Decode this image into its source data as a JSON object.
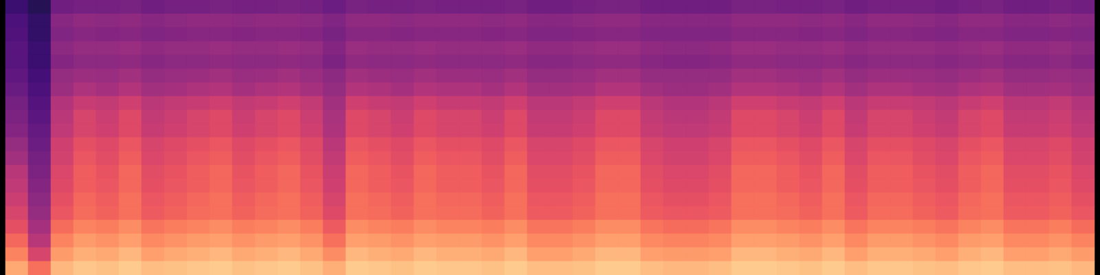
{
  "chart_data": {
    "type": "heatmap",
    "color": "magma",
    "zlim": [
      0,
      1
    ],
    "tick_labels": false,
    "values": [
      [
        0.2,
        0.15,
        0.33,
        0.34,
        0.34,
        0.35,
        0.33,
        0.34,
        0.34,
        0.35,
        0.34,
        0.34,
        0.35,
        0.34,
        0.32,
        0.35,
        0.34,
        0.34,
        0.35,
        0.34,
        0.34,
        0.34,
        0.35,
        0.33,
        0.33,
        0.34,
        0.35,
        0.35,
        0.33,
        0.33,
        0.33,
        0.33,
        0.35,
        0.35,
        0.34,
        0.34,
        0.35,
        0.33,
        0.34,
        0.34,
        0.34,
        0.33,
        0.34,
        0.35,
        0.33,
        0.33,
        0.34,
        0.33
      ],
      [
        0.24,
        0.18,
        0.39,
        0.41,
        0.4,
        0.41,
        0.39,
        0.4,
        0.41,
        0.41,
        0.4,
        0.41,
        0.41,
        0.4,
        0.37,
        0.41,
        0.41,
        0.4,
        0.41,
        0.41,
        0.41,
        0.4,
        0.41,
        0.39,
        0.39,
        0.4,
        0.41,
        0.41,
        0.39,
        0.39,
        0.39,
        0.39,
        0.41,
        0.41,
        0.41,
        0.4,
        0.41,
        0.39,
        0.41,
        0.41,
        0.4,
        0.39,
        0.41,
        0.41,
        0.39,
        0.39,
        0.4,
        0.39
      ],
      [
        0.25,
        0.18,
        0.37,
        0.39,
        0.38,
        0.39,
        0.37,
        0.38,
        0.39,
        0.39,
        0.38,
        0.39,
        0.39,
        0.38,
        0.35,
        0.39,
        0.39,
        0.38,
        0.39,
        0.39,
        0.39,
        0.38,
        0.39,
        0.37,
        0.37,
        0.38,
        0.39,
        0.39,
        0.37,
        0.37,
        0.37,
        0.37,
        0.39,
        0.39,
        0.39,
        0.38,
        0.39,
        0.37,
        0.39,
        0.39,
        0.38,
        0.37,
        0.39,
        0.39,
        0.37,
        0.37,
        0.38,
        0.37
      ],
      [
        0.27,
        0.2,
        0.4,
        0.42,
        0.42,
        0.43,
        0.41,
        0.42,
        0.42,
        0.43,
        0.42,
        0.42,
        0.43,
        0.42,
        0.38,
        0.43,
        0.42,
        0.42,
        0.43,
        0.42,
        0.42,
        0.42,
        0.43,
        0.41,
        0.41,
        0.42,
        0.43,
        0.43,
        0.41,
        0.4,
        0.4,
        0.41,
        0.43,
        0.43,
        0.42,
        0.42,
        0.43,
        0.41,
        0.42,
        0.42,
        0.42,
        0.41,
        0.42,
        0.43,
        0.41,
        0.41,
        0.42,
        0.4
      ],
      [
        0.27,
        0.2,
        0.38,
        0.4,
        0.4,
        0.41,
        0.39,
        0.4,
        0.4,
        0.41,
        0.4,
        0.4,
        0.41,
        0.4,
        0.36,
        0.41,
        0.4,
        0.4,
        0.41,
        0.4,
        0.4,
        0.4,
        0.41,
        0.39,
        0.39,
        0.4,
        0.41,
        0.41,
        0.39,
        0.38,
        0.38,
        0.39,
        0.41,
        0.41,
        0.4,
        0.4,
        0.41,
        0.39,
        0.4,
        0.4,
        0.4,
        0.39,
        0.4,
        0.41,
        0.39,
        0.39,
        0.4,
        0.38
      ],
      [
        0.29,
        0.22,
        0.42,
        0.44,
        0.43,
        0.45,
        0.42,
        0.43,
        0.44,
        0.45,
        0.43,
        0.44,
        0.45,
        0.43,
        0.4,
        0.45,
        0.44,
        0.43,
        0.45,
        0.44,
        0.44,
        0.43,
        0.45,
        0.42,
        0.42,
        0.43,
        0.45,
        0.45,
        0.42,
        0.42,
        0.42,
        0.42,
        0.45,
        0.45,
        0.44,
        0.43,
        0.45,
        0.42,
        0.44,
        0.44,
        0.43,
        0.42,
        0.44,
        0.45,
        0.42,
        0.42,
        0.43,
        0.42
      ],
      [
        0.31,
        0.24,
        0.44,
        0.48,
        0.46,
        0.49,
        0.45,
        0.46,
        0.48,
        0.49,
        0.46,
        0.48,
        0.49,
        0.46,
        0.42,
        0.49,
        0.48,
        0.46,
        0.49,
        0.48,
        0.48,
        0.46,
        0.49,
        0.45,
        0.45,
        0.46,
        0.49,
        0.49,
        0.45,
        0.44,
        0.44,
        0.45,
        0.49,
        0.49,
        0.48,
        0.46,
        0.49,
        0.45,
        0.48,
        0.48,
        0.46,
        0.45,
        0.48,
        0.49,
        0.45,
        0.45,
        0.46,
        0.44
      ],
      [
        0.34,
        0.26,
        0.49,
        0.54,
        0.53,
        0.56,
        0.51,
        0.53,
        0.54,
        0.56,
        0.53,
        0.54,
        0.56,
        0.53,
        0.45,
        0.56,
        0.54,
        0.53,
        0.56,
        0.54,
        0.54,
        0.53,
        0.56,
        0.51,
        0.51,
        0.53,
        0.56,
        0.56,
        0.51,
        0.49,
        0.49,
        0.51,
        0.56,
        0.56,
        0.54,
        0.53,
        0.56,
        0.51,
        0.54,
        0.54,
        0.53,
        0.51,
        0.54,
        0.56,
        0.51,
        0.51,
        0.53,
        0.49
      ],
      [
        0.36,
        0.28,
        0.51,
        0.58,
        0.55,
        0.6,
        0.53,
        0.55,
        0.58,
        0.6,
        0.55,
        0.58,
        0.6,
        0.55,
        0.47,
        0.6,
        0.58,
        0.55,
        0.6,
        0.58,
        0.58,
        0.55,
        0.6,
        0.53,
        0.53,
        0.55,
        0.6,
        0.6,
        0.53,
        0.51,
        0.51,
        0.53,
        0.6,
        0.6,
        0.58,
        0.55,
        0.6,
        0.53,
        0.58,
        0.58,
        0.55,
        0.53,
        0.58,
        0.6,
        0.53,
        0.53,
        0.55,
        0.51
      ],
      [
        0.38,
        0.3,
        0.52,
        0.58,
        0.56,
        0.6,
        0.54,
        0.56,
        0.58,
        0.6,
        0.56,
        0.58,
        0.6,
        0.56,
        0.48,
        0.6,
        0.58,
        0.56,
        0.6,
        0.58,
        0.58,
        0.56,
        0.6,
        0.54,
        0.54,
        0.56,
        0.6,
        0.6,
        0.54,
        0.52,
        0.52,
        0.54,
        0.6,
        0.6,
        0.58,
        0.56,
        0.6,
        0.54,
        0.58,
        0.58,
        0.56,
        0.54,
        0.58,
        0.6,
        0.54,
        0.54,
        0.56,
        0.52
      ],
      [
        0.42,
        0.32,
        0.56,
        0.62,
        0.6,
        0.64,
        0.58,
        0.6,
        0.62,
        0.64,
        0.6,
        0.62,
        0.64,
        0.6,
        0.51,
        0.64,
        0.62,
        0.6,
        0.64,
        0.62,
        0.62,
        0.6,
        0.64,
        0.58,
        0.58,
        0.6,
        0.64,
        0.64,
        0.58,
        0.56,
        0.56,
        0.58,
        0.64,
        0.64,
        0.62,
        0.6,
        0.64,
        0.58,
        0.62,
        0.62,
        0.6,
        0.58,
        0.62,
        0.64,
        0.58,
        0.58,
        0.6,
        0.56
      ],
      [
        0.45,
        0.34,
        0.57,
        0.64,
        0.61,
        0.66,
        0.59,
        0.61,
        0.64,
        0.66,
        0.61,
        0.64,
        0.66,
        0.61,
        0.53,
        0.66,
        0.64,
        0.61,
        0.66,
        0.64,
        0.64,
        0.61,
        0.66,
        0.59,
        0.59,
        0.61,
        0.66,
        0.66,
        0.59,
        0.57,
        0.57,
        0.59,
        0.66,
        0.66,
        0.64,
        0.61,
        0.66,
        0.59,
        0.64,
        0.64,
        0.61,
        0.59,
        0.64,
        0.66,
        0.59,
        0.59,
        0.61,
        0.57
      ],
      [
        0.5,
        0.36,
        0.59,
        0.66,
        0.63,
        0.68,
        0.61,
        0.63,
        0.66,
        0.68,
        0.63,
        0.66,
        0.68,
        0.63,
        0.55,
        0.68,
        0.66,
        0.63,
        0.68,
        0.66,
        0.66,
        0.63,
        0.68,
        0.61,
        0.61,
        0.63,
        0.68,
        0.68,
        0.61,
        0.59,
        0.59,
        0.61,
        0.68,
        0.68,
        0.66,
        0.63,
        0.68,
        0.61,
        0.66,
        0.66,
        0.63,
        0.61,
        0.66,
        0.68,
        0.61,
        0.61,
        0.63,
        0.59
      ],
      [
        0.52,
        0.38,
        0.6,
        0.66,
        0.64,
        0.68,
        0.62,
        0.64,
        0.66,
        0.68,
        0.64,
        0.66,
        0.68,
        0.64,
        0.56,
        0.68,
        0.66,
        0.64,
        0.68,
        0.66,
        0.66,
        0.64,
        0.68,
        0.62,
        0.62,
        0.64,
        0.68,
        0.68,
        0.62,
        0.6,
        0.6,
        0.62,
        0.68,
        0.68,
        0.66,
        0.64,
        0.68,
        0.62,
        0.66,
        0.66,
        0.64,
        0.62,
        0.66,
        0.68,
        0.62,
        0.62,
        0.64,
        0.6
      ],
      [
        0.55,
        0.4,
        0.62,
        0.68,
        0.66,
        0.7,
        0.64,
        0.66,
        0.68,
        0.7,
        0.66,
        0.68,
        0.7,
        0.66,
        0.58,
        0.7,
        0.68,
        0.66,
        0.7,
        0.68,
        0.68,
        0.66,
        0.7,
        0.64,
        0.64,
        0.66,
        0.7,
        0.7,
        0.64,
        0.62,
        0.62,
        0.64,
        0.7,
        0.7,
        0.68,
        0.66,
        0.7,
        0.64,
        0.68,
        0.68,
        0.66,
        0.64,
        0.68,
        0.7,
        0.64,
        0.64,
        0.66,
        0.62
      ],
      [
        0.58,
        0.42,
        0.64,
        0.69,
        0.67,
        0.7,
        0.65,
        0.67,
        0.69,
        0.7,
        0.67,
        0.69,
        0.7,
        0.67,
        0.6,
        0.7,
        0.69,
        0.67,
        0.7,
        0.69,
        0.69,
        0.67,
        0.7,
        0.65,
        0.65,
        0.67,
        0.7,
        0.7,
        0.65,
        0.64,
        0.64,
        0.65,
        0.7,
        0.7,
        0.69,
        0.67,
        0.7,
        0.65,
        0.69,
        0.69,
        0.67,
        0.65,
        0.69,
        0.7,
        0.65,
        0.65,
        0.67,
        0.64
      ],
      [
        0.62,
        0.46,
        0.69,
        0.74,
        0.73,
        0.76,
        0.71,
        0.73,
        0.74,
        0.76,
        0.73,
        0.74,
        0.76,
        0.73,
        0.65,
        0.76,
        0.74,
        0.73,
        0.76,
        0.74,
        0.74,
        0.73,
        0.76,
        0.71,
        0.71,
        0.73,
        0.76,
        0.76,
        0.71,
        0.69,
        0.69,
        0.71,
        0.76,
        0.76,
        0.74,
        0.73,
        0.76,
        0.71,
        0.74,
        0.74,
        0.73,
        0.71,
        0.74,
        0.76,
        0.71,
        0.71,
        0.73,
        0.69
      ],
      [
        0.68,
        0.5,
        0.74,
        0.79,
        0.77,
        0.8,
        0.75,
        0.77,
        0.79,
        0.8,
        0.77,
        0.79,
        0.8,
        0.77,
        0.7,
        0.8,
        0.79,
        0.77,
        0.8,
        0.79,
        0.79,
        0.77,
        0.8,
        0.75,
        0.75,
        0.77,
        0.8,
        0.8,
        0.75,
        0.74,
        0.74,
        0.75,
        0.8,
        0.8,
        0.79,
        0.77,
        0.8,
        0.75,
        0.79,
        0.79,
        0.77,
        0.75,
        0.79,
        0.8,
        0.75,
        0.75,
        0.77,
        0.74
      ],
      [
        0.74,
        0.58,
        0.79,
        0.83,
        0.82,
        0.85,
        0.8,
        0.82,
        0.83,
        0.85,
        0.82,
        0.83,
        0.85,
        0.82,
        0.76,
        0.85,
        0.83,
        0.82,
        0.85,
        0.83,
        0.83,
        0.82,
        0.85,
        0.8,
        0.8,
        0.82,
        0.85,
        0.85,
        0.8,
        0.79,
        0.79,
        0.8,
        0.85,
        0.85,
        0.83,
        0.82,
        0.85,
        0.8,
        0.83,
        0.83,
        0.82,
        0.8,
        0.83,
        0.85,
        0.8,
        0.8,
        0.82,
        0.79
      ],
      [
        0.82,
        0.7,
        0.85,
        0.88,
        0.87,
        0.89,
        0.86,
        0.87,
        0.88,
        0.89,
        0.87,
        0.88,
        0.89,
        0.87,
        0.83,
        0.89,
        0.88,
        0.87,
        0.89,
        0.88,
        0.88,
        0.87,
        0.89,
        0.86,
        0.86,
        0.87,
        0.89,
        0.89,
        0.86,
        0.85,
        0.85,
        0.86,
        0.89,
        0.89,
        0.88,
        0.87,
        0.89,
        0.86,
        0.88,
        0.88,
        0.87,
        0.86,
        0.88,
        0.89,
        0.86,
        0.86,
        0.87,
        0.85
      ]
    ]
  }
}
